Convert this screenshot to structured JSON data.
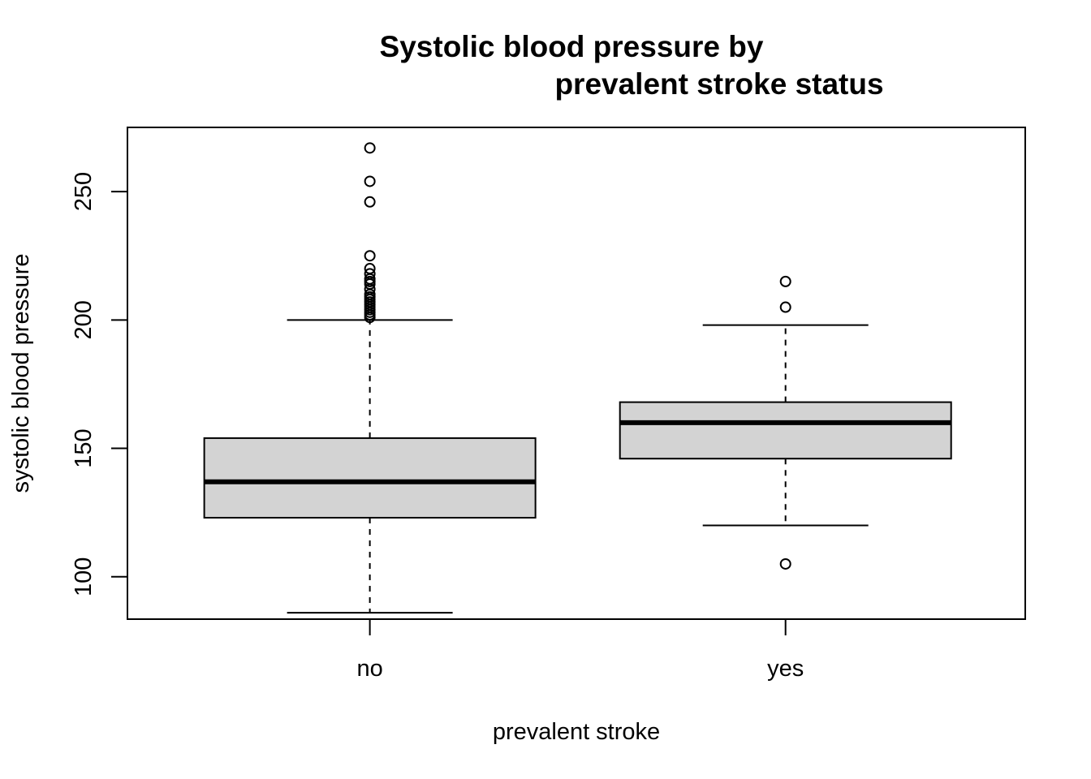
{
  "chart_data": {
    "type": "box",
    "title_lines": [
      "Systolic blood pressure by",
      "prevalent stroke status"
    ],
    "xlabel": "prevalent stroke",
    "ylabel": "systolic blood pressure",
    "categories": [
      "no",
      "yes"
    ],
    "yticks": [
      100,
      150,
      200,
      250
    ],
    "ylim": [
      83.5,
      275
    ],
    "boxes": [
      {
        "category": "no",
        "whisker_low": 86,
        "q1": 123,
        "median": 137,
        "q3": 154,
        "whisker_high": 200,
        "outliers": [
          201,
          202,
          203,
          204,
          205,
          206,
          207,
          208,
          209,
          210,
          212,
          214,
          215,
          216,
          218,
          220,
          225,
          246,
          254,
          267
        ]
      },
      {
        "category": "yes",
        "whisker_low": 120,
        "q1": 146,
        "median": 160,
        "q3": 168,
        "whisker_high": 198,
        "outliers": [
          105,
          205,
          215
        ]
      }
    ],
    "box_fill": "#d3d3d3",
    "line_color": "#000000",
    "grid": false,
    "legend": "none"
  }
}
